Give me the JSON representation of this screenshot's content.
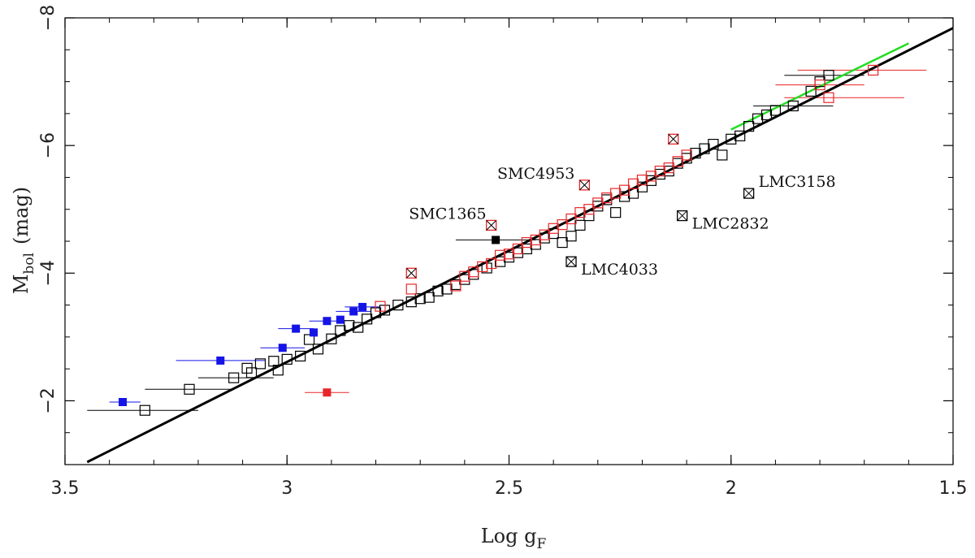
{
  "chart_data": {
    "type": "scatter",
    "title": "",
    "xlabel": "Log g",
    "xlabel_sub": "F",
    "ylabel": "M",
    "ylabel_sub": "bol",
    "ylabel_unit": "(mag)",
    "xlim": [
      3.5,
      1.5
    ],
    "ylim": [
      -1,
      -8
    ],
    "x_ticks": [
      3.5,
      3,
      2.5,
      2,
      1.5
    ],
    "x_tick_labels": [
      "3.5",
      "3",
      "2.5",
      "2",
      "1.5"
    ],
    "y_ticks": [
      -2,
      -4,
      -6,
      -8
    ],
    "y_tick_labels": [
      "−2",
      "−4",
      "−6",
      "−8"
    ],
    "grid": false,
    "colors": {
      "black": "#000000",
      "red": "#e8262a",
      "blue": "#1414e6",
      "green": "#22dd22"
    },
    "fit_line": {
      "color": "black",
      "x": [
        3.45,
        1.5
      ],
      "y": [
        -1.04,
        -7.84
      ]
    },
    "green_line": {
      "color": "green",
      "x": [
        2.0,
        1.6
      ],
      "y": [
        -6.25,
        -7.6
      ]
    },
    "series": [
      {
        "marker": "open-square",
        "color": "black",
        "points": [
          [
            3.32,
            -1.85
          ],
          [
            3.22,
            -2.18
          ],
          [
            3.12,
            -2.36
          ],
          [
            3.09,
            -2.51
          ],
          [
            3.08,
            -2.44
          ],
          [
            3.06,
            -2.58
          ],
          [
            3.03,
            -2.62
          ],
          [
            3.02,
            -2.48
          ],
          [
            3.0,
            -2.65
          ],
          [
            2.97,
            -2.7
          ],
          [
            2.95,
            -2.96
          ],
          [
            2.93,
            -2.81
          ],
          [
            2.9,
            -2.97
          ],
          [
            2.88,
            -3.1
          ],
          [
            2.86,
            -3.18
          ],
          [
            2.84,
            -3.15
          ],
          [
            2.82,
            -3.28
          ],
          [
            2.8,
            -3.38
          ],
          [
            2.78,
            -3.42
          ],
          [
            2.75,
            -3.5
          ],
          [
            2.72,
            -3.55
          ],
          [
            2.7,
            -3.6
          ],
          [
            2.68,
            -3.62
          ],
          [
            2.66,
            -3.72
          ],
          [
            2.64,
            -3.75
          ],
          [
            2.62,
            -3.82
          ],
          [
            2.6,
            -3.9
          ],
          [
            2.58,
            -3.98
          ],
          [
            2.55,
            -4.08
          ],
          [
            2.52,
            -4.18
          ],
          [
            2.5,
            -4.25
          ],
          [
            2.48,
            -4.32
          ],
          [
            2.46,
            -4.38
          ],
          [
            2.44,
            -4.45
          ],
          [
            2.42,
            -4.55
          ],
          [
            2.4,
            -4.62
          ],
          [
            2.38,
            -4.48
          ],
          [
            2.36,
            -4.58
          ],
          [
            2.34,
            -4.75
          ],
          [
            2.32,
            -4.9
          ],
          [
            2.3,
            -5.05
          ],
          [
            2.28,
            -5.15
          ],
          [
            2.26,
            -4.95
          ],
          [
            2.24,
            -5.2
          ],
          [
            2.22,
            -5.25
          ],
          [
            2.2,
            -5.35
          ],
          [
            2.18,
            -5.45
          ],
          [
            2.16,
            -5.55
          ],
          [
            2.14,
            -5.6
          ],
          [
            2.12,
            -5.72
          ],
          [
            2.1,
            -5.8
          ],
          [
            2.08,
            -5.88
          ],
          [
            2.06,
            -5.95
          ],
          [
            2.04,
            -6.02
          ],
          [
            2.02,
            -5.85
          ],
          [
            2.0,
            -6.1
          ],
          [
            1.98,
            -6.15
          ],
          [
            1.96,
            -6.3
          ],
          [
            1.94,
            -6.42
          ],
          [
            1.92,
            -6.48
          ],
          [
            1.9,
            -6.55
          ],
          [
            1.86,
            -6.62
          ],
          [
            1.82,
            -6.85
          ],
          [
            1.8,
            -7.0
          ],
          [
            1.78,
            -7.1
          ]
        ]
      },
      {
        "marker": "open-square",
        "color": "red",
        "points": [
          [
            2.79,
            -3.48
          ],
          [
            2.72,
            -3.75
          ],
          [
            2.62,
            -3.8
          ],
          [
            2.6,
            -3.95
          ],
          [
            2.58,
            -4.02
          ],
          [
            2.56,
            -4.1
          ],
          [
            2.54,
            -4.15
          ],
          [
            2.52,
            -4.28
          ],
          [
            2.5,
            -4.3
          ],
          [
            2.48,
            -4.38
          ],
          [
            2.46,
            -4.48
          ],
          [
            2.44,
            -4.52
          ],
          [
            2.42,
            -4.6
          ],
          [
            2.4,
            -4.7
          ],
          [
            2.38,
            -4.76
          ],
          [
            2.36,
            -4.85
          ],
          [
            2.34,
            -4.95
          ],
          [
            2.32,
            -5.0
          ],
          [
            2.3,
            -5.1
          ],
          [
            2.28,
            -5.18
          ],
          [
            2.26,
            -5.25
          ],
          [
            2.24,
            -5.3
          ],
          [
            2.22,
            -5.4
          ],
          [
            2.2,
            -5.46
          ],
          [
            2.18,
            -5.52
          ],
          [
            2.16,
            -5.6
          ],
          [
            2.14,
            -5.65
          ],
          [
            2.12,
            -5.75
          ],
          [
            2.1,
            -5.85
          ],
          [
            1.8,
            -6.95
          ],
          [
            1.78,
            -6.75
          ],
          [
            1.68,
            -7.18
          ]
        ]
      },
      {
        "marker": "crossed-square",
        "color": "red",
        "points": [
          [
            2.72,
            -4.0
          ],
          [
            2.54,
            -4.75
          ],
          [
            2.33,
            -5.38
          ],
          [
            2.13,
            -6.1
          ]
        ]
      },
      {
        "marker": "crossed-square",
        "color": "black",
        "points": [
          [
            2.36,
            -4.18
          ],
          [
            2.11,
            -4.9
          ],
          [
            1.96,
            -5.25
          ]
        ]
      },
      {
        "marker": "filled-square",
        "color": "blue",
        "points": [
          [
            3.37,
            -1.98
          ],
          [
            3.15,
            -2.63
          ],
          [
            3.01,
            -2.83
          ],
          [
            2.98,
            -3.13
          ],
          [
            2.94,
            -3.07
          ],
          [
            2.91,
            -3.25
          ],
          [
            2.88,
            -3.27
          ],
          [
            2.85,
            -3.4
          ],
          [
            2.83,
            -3.47
          ]
        ]
      },
      {
        "marker": "filled-square",
        "color": "red",
        "points": [
          [
            2.91,
            -2.13
          ]
        ]
      },
      {
        "marker": "filled-square",
        "color": "black",
        "points": [
          [
            2.53,
            -4.52
          ]
        ]
      }
    ],
    "error_bars": [
      {
        "color": "black",
        "y": -1.85,
        "x1": 3.45,
        "x2": 3.2
      },
      {
        "color": "black",
        "y": -2.18,
        "x1": 3.32,
        "x2": 3.12
      },
      {
        "color": "black",
        "y": -2.36,
        "x1": 3.2,
        "x2": 3.03
      },
      {
        "color": "black",
        "y": -4.52,
        "x1": 2.62,
        "x2": 2.44
      },
      {
        "color": "black",
        "y": -7.1,
        "x1": 1.88,
        "x2": 1.7
      },
      {
        "color": "black",
        "y": -6.62,
        "x1": 1.95,
        "x2": 1.77
      },
      {
        "color": "red",
        "y": -2.13,
        "x1": 2.96,
        "x2": 2.86
      },
      {
        "color": "red",
        "y": -7.18,
        "x1": 1.85,
        "x2": 1.56
      },
      {
        "color": "red",
        "y": -6.95,
        "x1": 1.9,
        "x2": 1.7
      },
      {
        "color": "red",
        "y": -6.75,
        "x1": 1.88,
        "x2": 1.61
      },
      {
        "color": "blue",
        "y": -1.98,
        "x1": 3.4,
        "x2": 3.33
      },
      {
        "color": "blue",
        "y": -2.63,
        "x1": 3.25,
        "x2": 3.05
      },
      {
        "color": "blue",
        "y": -2.83,
        "x1": 3.06,
        "x2": 2.96
      },
      {
        "color": "blue",
        "y": -3.13,
        "x1": 3.02,
        "x2": 2.94
      },
      {
        "color": "blue",
        "y": -3.25,
        "x1": 2.95,
        "x2": 2.87
      },
      {
        "color": "blue",
        "y": -3.4,
        "x1": 2.89,
        "x2": 2.81
      },
      {
        "color": "blue",
        "y": -3.47,
        "x1": 2.87,
        "x2": 2.79
      }
    ],
    "annotations": [
      {
        "text": "SMC4953",
        "x": 2.33,
        "y": -5.38
      },
      {
        "text": "SMC1365",
        "x": 2.54,
        "y": -4.75
      },
      {
        "text": "LMC4033",
        "x": 2.36,
        "y": -4.18
      },
      {
        "text": "LMC2832",
        "x": 2.11,
        "y": -4.9
      },
      {
        "text": "LMC3158",
        "x": 1.96,
        "y": -5.25
      }
    ]
  }
}
